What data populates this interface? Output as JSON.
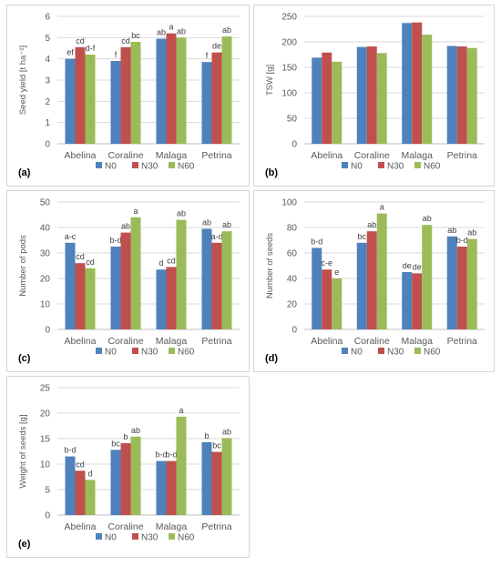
{
  "colors": {
    "N0": "#4f81bd",
    "N30": "#c0504d",
    "N60": "#9bbb59",
    "grid": "#d9d9d9",
    "axis": "#bfbfbf",
    "text": "#595959"
  },
  "chart_data": [
    {
      "panel_label": "(a)",
      "type": "bar",
      "ylabel": "Seed yield [t ha⁻¹]",
      "ylim": [
        0,
        6
      ],
      "yticks": [
        0,
        1,
        2,
        3,
        4,
        5,
        6
      ],
      "grid": true,
      "legend_position": "bottom",
      "categories": [
        "Abelina",
        "Coraline",
        "Malaga",
        "Petrina"
      ],
      "series": [
        {
          "name": "N0",
          "values": [
            4.0,
            3.9,
            4.95,
            3.85
          ],
          "labels": [
            "ef",
            "f",
            "ab",
            "f"
          ]
        },
        {
          "name": "N30",
          "values": [
            4.55,
            4.55,
            5.2,
            4.3
          ],
          "labels": [
            "cd",
            "cd",
            "a",
            "de"
          ]
        },
        {
          "name": "N60",
          "values": [
            4.2,
            4.8,
            5.0,
            5.05
          ],
          "labels": [
            "d-f",
            "bc",
            "ab",
            "ab"
          ]
        }
      ]
    },
    {
      "panel_label": "(b)",
      "type": "bar",
      "ylabel": "TSW [g]",
      "ylim": [
        0,
        250
      ],
      "yticks": [
        0,
        50,
        100,
        150,
        200,
        250
      ],
      "grid": true,
      "legend_position": "bottom",
      "categories": [
        "Abelina",
        "Coraline",
        "Malaga",
        "Petrina"
      ],
      "series": [
        {
          "name": "N0",
          "values": [
            169,
            190,
            237,
            192
          ],
          "labels": [
            "",
            "",
            "",
            ""
          ]
        },
        {
          "name": "N30",
          "values": [
            179,
            191,
            238,
            191
          ],
          "labels": [
            "",
            "",
            "",
            ""
          ]
        },
        {
          "name": "N60",
          "values": [
            161,
            178,
            214,
            188
          ],
          "labels": [
            "",
            "",
            "",
            ""
          ]
        }
      ]
    },
    {
      "panel_label": "(c)",
      "type": "bar",
      "ylabel": "Number of pods",
      "ylim": [
        0,
        50
      ],
      "yticks": [
        0,
        10,
        20,
        30,
        40,
        50
      ],
      "grid": true,
      "legend_position": "bottom",
      "categories": [
        "Abelina",
        "Coraline",
        "Malaga",
        "Petrina"
      ],
      "series": [
        {
          "name": "N0",
          "values": [
            34,
            32.5,
            23.5,
            39.5
          ],
          "labels": [
            "a-c",
            "b-d",
            "d",
            "ab"
          ]
        },
        {
          "name": "N30",
          "values": [
            26,
            38,
            24.5,
            34
          ],
          "labels": [
            "cd",
            "ab",
            "cd",
            "a-d"
          ]
        },
        {
          "name": "N60",
          "values": [
            24,
            44,
            43,
            38.5
          ],
          "labels": [
            "cd",
            "a",
            "ab",
            "ab"
          ]
        }
      ]
    },
    {
      "panel_label": "(d)",
      "type": "bar",
      "ylabel": "Number of seeds",
      "ylim": [
        0,
        100
      ],
      "yticks": [
        0,
        20,
        40,
        60,
        80,
        100
      ],
      "grid": true,
      "legend_position": "bottom",
      "categories": [
        "Abelina",
        "Coraline",
        "Malaga",
        "Petrina"
      ],
      "series": [
        {
          "name": "N0",
          "values": [
            64,
            68,
            45,
            73
          ],
          "labels": [
            "b-d",
            "bc",
            "de",
            "ab"
          ]
        },
        {
          "name": "N30",
          "values": [
            47,
            77,
            44,
            65
          ],
          "labels": [
            "c-e",
            "ab",
            "de",
            "b-d"
          ]
        },
        {
          "name": "N60",
          "values": [
            40,
            91,
            82,
            71
          ],
          "labels": [
            "e",
            "a",
            "ab",
            "ab"
          ]
        }
      ]
    },
    {
      "panel_label": "(e)",
      "type": "bar",
      "ylabel": "Weight of seeds [g]",
      "ylim": [
        0,
        25
      ],
      "yticks": [
        0,
        5,
        10,
        15,
        20,
        25
      ],
      "grid": true,
      "legend_position": "bottom",
      "categories": [
        "Abelina",
        "Coraline",
        "Malaga",
        "Petrina"
      ],
      "series": [
        {
          "name": "N0",
          "values": [
            11.5,
            12.8,
            10.6,
            14.3
          ],
          "labels": [
            "b-d",
            "bc",
            "b-d",
            "b"
          ]
        },
        {
          "name": "N30",
          "values": [
            8.7,
            14.1,
            10.6,
            12.4
          ],
          "labels": [
            "cd",
            "b",
            "b-d",
            "bc"
          ]
        },
        {
          "name": "N60",
          "values": [
            6.9,
            15.4,
            19.3,
            15.1
          ],
          "labels": [
            "d",
            "ab",
            "a",
            "ab"
          ]
        }
      ]
    }
  ]
}
